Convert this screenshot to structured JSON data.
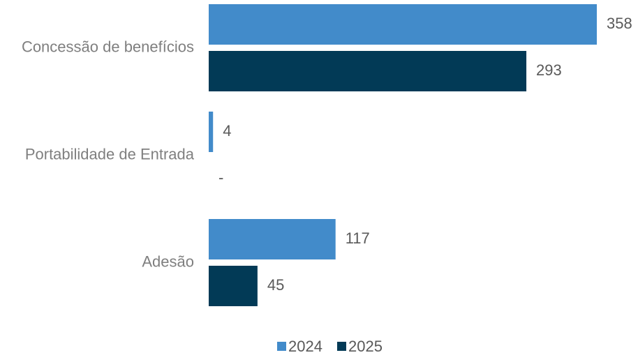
{
  "chart_data": {
    "type": "bar",
    "orientation": "horizontal",
    "categories": [
      "Concessão de benefícios",
      "Portabilidade de Entrada",
      "Adesão"
    ],
    "series": [
      {
        "name": "2024",
        "values": [
          358,
          4,
          117
        ],
        "labels": [
          "358",
          "4",
          "117"
        ],
        "color": "#428bca"
      },
      {
        "name": "2025",
        "values": [
          293,
          0,
          45
        ],
        "labels": [
          "293",
          "-",
          "45"
        ],
        "color": "#023a56"
      }
    ],
    "xlim": [
      0,
      358
    ],
    "grid": false,
    "legend_position": "bottom"
  }
}
